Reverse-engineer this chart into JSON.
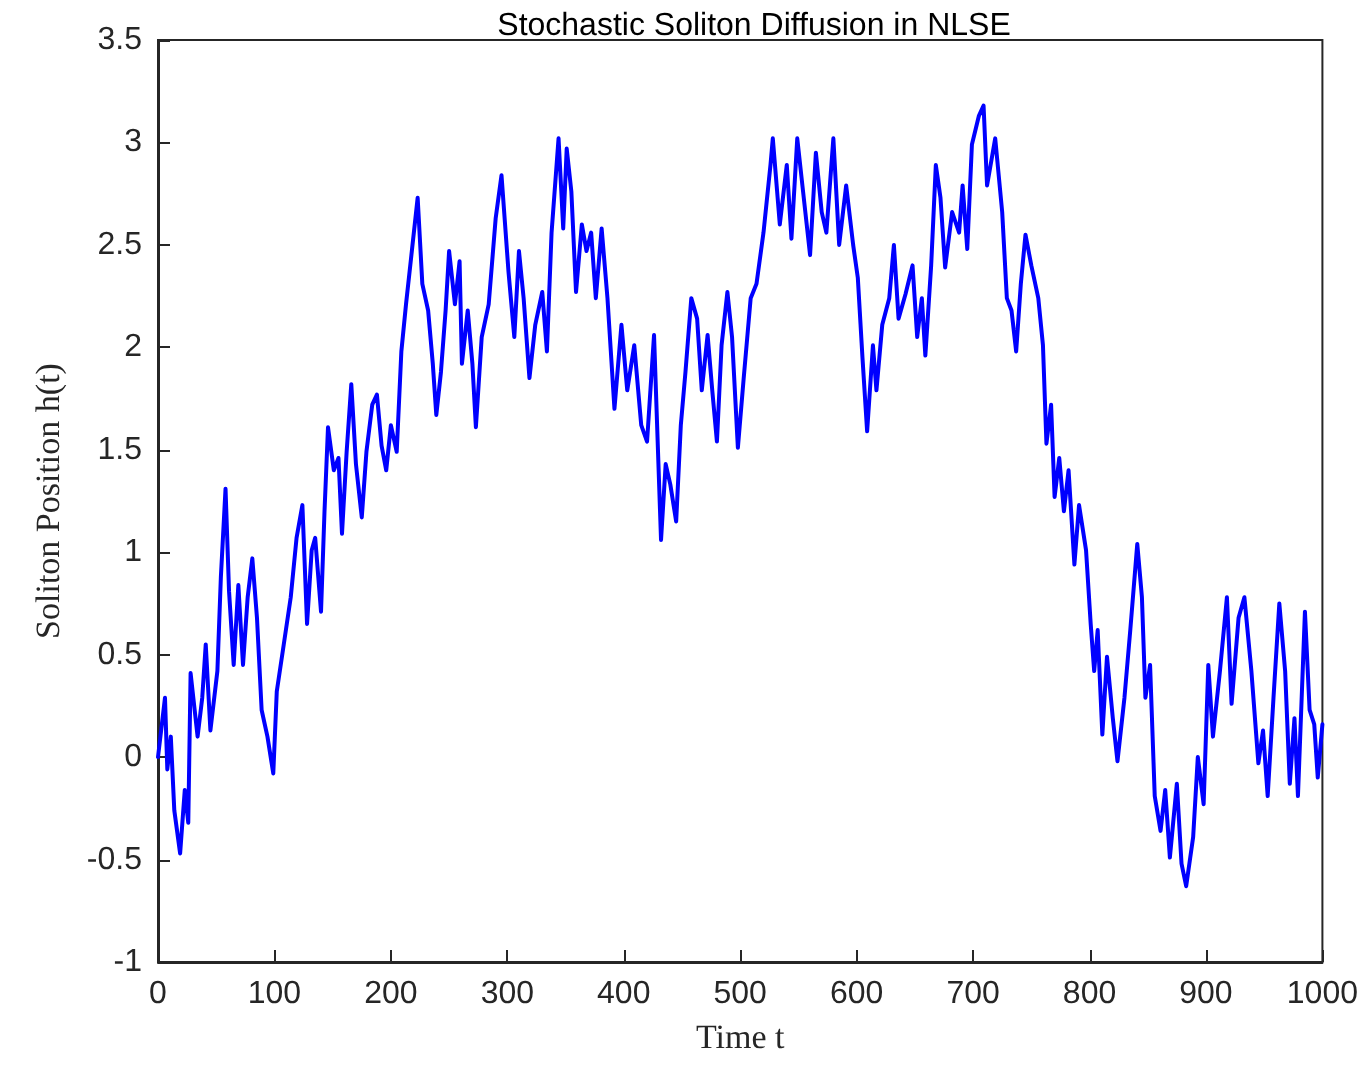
{
  "chart_data": {
    "type": "line",
    "title": "Stochastic Soliton Diffusion in NLSE",
    "xlabel": "Time t",
    "ylabel": "Soliton Position h(t)",
    "xlim": [
      0,
      1000
    ],
    "xticks": [
      0,
      100,
      200,
      300,
      400,
      500,
      600,
      700,
      800,
      900,
      1000
    ],
    "ylim": [
      -1,
      3.5
    ],
    "yticks": [
      -1,
      -0.5,
      0,
      0.5,
      1,
      1.5,
      2,
      2.5,
      3,
      3.5
    ],
    "grid": false,
    "marker": "none",
    "line_style": "solid",
    "series": [
      {
        "color": "#0000ff",
        "x": [
          0,
          6,
          8,
          11,
          14,
          19,
          23,
          26,
          28,
          34,
          38,
          41,
          45,
          51,
          54,
          58,
          61,
          65,
          69,
          73,
          77,
          81,
          85,
          89,
          94,
          99,
          102,
          108,
          114,
          119,
          124,
          128,
          132,
          135,
          140,
          143,
          146,
          151,
          155,
          158,
          162,
          166,
          170,
          175,
          179,
          184,
          188,
          192,
          196,
          200,
          205,
          209,
          213,
          218,
          223,
          227,
          232,
          236,
          239,
          243,
          247,
          250,
          255,
          259,
          261,
          266,
          270,
          273,
          278,
          284,
          290,
          295,
          301,
          306,
          310,
          314,
          319,
          324,
          330,
          334,
          338,
          344,
          348,
          351,
          355,
          359,
          364,
          368,
          372,
          376,
          381,
          386,
          392,
          398,
          403,
          409,
          415,
          420,
          426,
          432,
          436,
          440,
          445,
          449,
          453,
          458,
          463,
          467,
          472,
          476,
          480,
          484,
          489,
          493,
          498,
          503,
          509,
          514,
          520,
          526,
          528,
          534,
          540,
          544,
          549,
          554,
          560,
          565,
          570,
          574,
          580,
          585,
          591,
          597,
          601,
          605,
          609,
          614,
          617,
          622,
          628,
          632,
          636,
          642,
          648,
          652,
          656,
          659,
          664,
          668,
          672,
          676,
          682,
          688,
          691,
          695,
          699,
          705,
          709,
          712,
          719,
          725,
          729,
          733,
          737,
          741,
          745,
          750,
          756,
          760,
          763,
          767,
          770,
          774,
          778,
          782,
          787,
          791,
          797,
          801,
          804,
          807,
          811,
          815,
          820,
          824,
          830,
          835,
          841,
          845,
          848,
          852,
          856,
          861,
          865,
          869,
          875,
          879,
          883,
          889,
          893,
          898,
          902,
          906,
          912,
          918,
          922,
          928,
          933,
          939,
          945,
          949,
          953,
          958,
          963,
          968,
          972,
          976,
          979,
          985,
          989,
          993,
          996,
          1000
        ],
        "values": [
          0,
          0.29,
          -0.06,
          0.1,
          -0.26,
          -0.47,
          -0.16,
          -0.32,
          0.41,
          0.1,
          0.29,
          0.55,
          0.13,
          0.42,
          0.88,
          1.31,
          0.81,
          0.45,
          0.84,
          0.45,
          0.78,
          0.97,
          0.68,
          0.23,
          0.1,
          -0.08,
          0.32,
          0.55,
          0.78,
          1.07,
          1.23,
          0.65,
          1.01,
          1.07,
          0.71,
          1.2,
          1.61,
          1.4,
          1.46,
          1.09,
          1.49,
          1.82,
          1.43,
          1.17,
          1.49,
          1.72,
          1.77,
          1.52,
          1.4,
          1.62,
          1.49,
          1.98,
          2.21,
          2.47,
          2.73,
          2.31,
          2.18,
          1.92,
          1.67,
          1.88,
          2.18,
          2.47,
          2.21,
          2.42,
          1.92,
          2.18,
          1.92,
          1.61,
          2.05,
          2.21,
          2.63,
          2.84,
          2.37,
          2.05,
          2.47,
          2.24,
          1.85,
          2.11,
          2.27,
          1.98,
          2.56,
          3.02,
          2.58,
          2.97,
          2.76,
          2.27,
          2.6,
          2.47,
          2.56,
          2.24,
          2.58,
          2.24,
          1.7,
          2.11,
          1.79,
          2.01,
          1.62,
          1.54,
          2.06,
          1.06,
          1.43,
          1.33,
          1.15,
          1.62,
          1.88,
          2.24,
          2.14,
          1.79,
          2.06,
          1.79,
          1.54,
          2.01,
          2.27,
          2.05,
          1.51,
          1.85,
          2.24,
          2.31,
          2.56,
          2.89,
          3.02,
          2.6,
          2.89,
          2.53,
          3.02,
          2.76,
          2.45,
          2.95,
          2.66,
          2.56,
          3.02,
          2.5,
          2.79,
          2.5,
          2.34,
          1.95,
          1.59,
          2.01,
          1.79,
          2.11,
          2.24,
          2.5,
          2.14,
          2.26,
          2.4,
          2.05,
          2.24,
          1.96,
          2.4,
          2.89,
          2.73,
          2.39,
          2.66,
          2.56,
          2.79,
          2.48,
          2.99,
          3.13,
          3.18,
          2.79,
          3.02,
          2.66,
          2.24,
          2.18,
          1.98,
          2.31,
          2.55,
          2.4,
          2.24,
          2.01,
          1.53,
          1.72,
          1.27,
          1.46,
          1.2,
          1.4,
          0.94,
          1.23,
          1.01,
          0.65,
          0.42,
          0.62,
          0.11,
          0.49,
          0.19,
          -0.02,
          0.29,
          0.62,
          1.04,
          0.78,
          0.29,
          0.45,
          -0.19,
          -0.36,
          -0.16,
          -0.49,
          -0.13,
          -0.52,
          -0.63,
          -0.39,
          0,
          -0.23,
          0.45,
          0.1,
          0.42,
          0.78,
          0.26,
          0.68,
          0.78,
          0.42,
          -0.03,
          0.13,
          -0.19,
          0.29,
          0.75,
          0.42,
          -0.13,
          0.19,
          -0.19,
          0.71,
          0.23,
          0.16,
          -0.1,
          0.16
        ]
      }
    ]
  }
}
